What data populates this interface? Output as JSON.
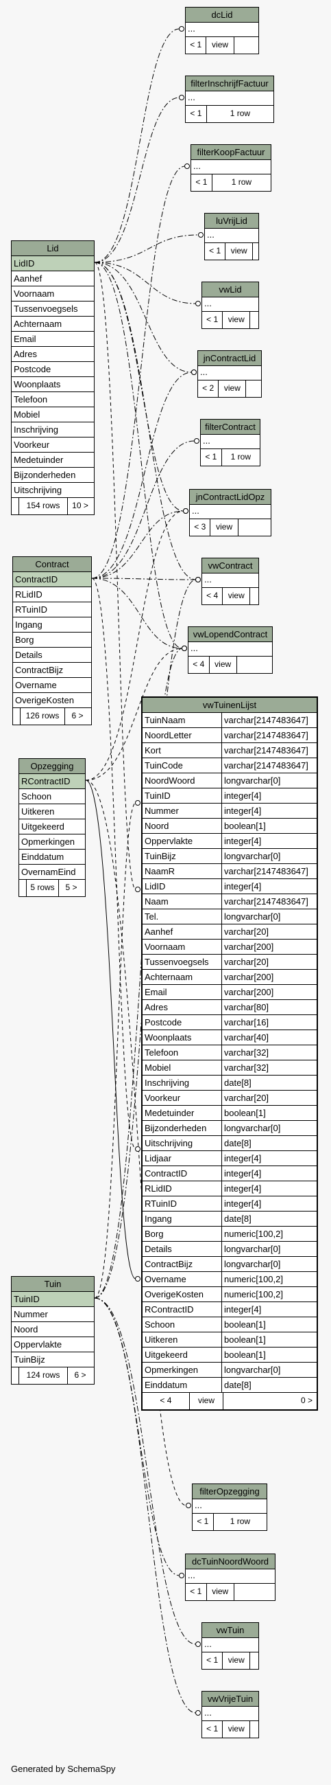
{
  "generated_by": "Generated by SchemaSpy",
  "small_views": [
    {
      "name": "dcLid",
      "cells": [
        "< 1",
        "view",
        ""
      ]
    },
    {
      "name": "filterInschrijfFactuur",
      "cells": [
        "< 1",
        "1 row"
      ]
    },
    {
      "name": "filterKoopFactuur",
      "cells": [
        "< 1",
        "1 row"
      ]
    },
    {
      "name": "luVrijLid",
      "cells": [
        "< 1",
        "view",
        ""
      ]
    },
    {
      "name": "vwLid",
      "cells": [
        "< 1",
        "view",
        ""
      ]
    },
    {
      "name": "jnContractLid",
      "cells": [
        "< 2",
        "view",
        ""
      ]
    },
    {
      "name": "filterContract",
      "cells": [
        "< 1",
        "1 row"
      ]
    },
    {
      "name": "jnContractLidOpz",
      "cells": [
        "< 3",
        "view",
        ""
      ]
    },
    {
      "name": "vwContract",
      "cells": [
        "< 4",
        "view",
        ""
      ]
    },
    {
      "name": "vwLopendContract",
      "cells": [
        "< 4",
        "view",
        ""
      ]
    },
    {
      "name": "filterOpzegging",
      "cells": [
        "< 1",
        "1 row"
      ]
    },
    {
      "name": "dcTuinNoordWoord",
      "cells": [
        "< 1",
        "view",
        ""
      ]
    },
    {
      "name": "vwTuin",
      "cells": [
        "< 1",
        "view",
        ""
      ]
    },
    {
      "name": "vwVrijeTuin",
      "cells": [
        "< 1",
        "view",
        ""
      ]
    }
  ],
  "ellipsis": "...",
  "lid": {
    "name": "Lid",
    "pk": "LidID",
    "columns": [
      "Aanhef",
      "Voornaam",
      "Tussenvoegsels",
      "Achternaam",
      "Email",
      "Adres",
      "Postcode",
      "Woonplaats",
      "Telefoon",
      "Mobiel",
      "Inschrijving",
      "Voorkeur",
      "Medetuinder",
      "Bijzonderheden",
      "Uitschrijving"
    ],
    "rows": "154 rows",
    "children": "10 >"
  },
  "contract": {
    "name": "Contract",
    "pk": "ContractID",
    "columns": [
      "RLidID",
      "RTuinID",
      "Ingang",
      "Borg",
      "Details",
      "ContractBijz",
      "Overname",
      "OverigeKosten"
    ],
    "rows": "126 rows",
    "children": "6 >"
  },
  "opzegging": {
    "name": "Opzegging",
    "pk": "RContractID",
    "columns": [
      "Schoon",
      "Uitkeren",
      "Uitgekeerd",
      "Opmerkingen",
      "Einddatum",
      "OvernamEind"
    ],
    "rows": "5 rows",
    "children": "5 >"
  },
  "tuin": {
    "name": "Tuin",
    "pk": "TuinID",
    "columns": [
      "Nummer",
      "Noord",
      "Oppervlakte",
      "TuinBijz"
    ],
    "rows": "124 rows",
    "children": "6 >"
  },
  "vwTuinenLijst": {
    "name": "vwTuinenLijst",
    "columns": [
      [
        "TuinNaam",
        "varchar[2147483647]"
      ],
      [
        "NoordLetter",
        "varchar[2147483647]"
      ],
      [
        "Kort",
        "varchar[2147483647]"
      ],
      [
        "TuinCode",
        "varchar[2147483647]"
      ],
      [
        "NoordWoord",
        "longvarchar[0]"
      ],
      [
        "TuinID",
        "integer[4]"
      ],
      [
        "Nummer",
        "integer[4]"
      ],
      [
        "Noord",
        "boolean[1]"
      ],
      [
        "Oppervlakte",
        "integer[4]"
      ],
      [
        "TuinBijz",
        "longvarchar[0]"
      ],
      [
        "NaamR",
        "varchar[2147483647]"
      ],
      [
        "LidID",
        "integer[4]"
      ],
      [
        "Naam",
        "varchar[2147483647]"
      ],
      [
        "Tel.",
        "longvarchar[0]"
      ],
      [
        "Aanhef",
        "varchar[20]"
      ],
      [
        "Voornaam",
        "varchar[200]"
      ],
      [
        "Tussenvoegsels",
        "varchar[20]"
      ],
      [
        "Achternaam",
        "varchar[200]"
      ],
      [
        "Email",
        "varchar[200]"
      ],
      [
        "Adres",
        "varchar[80]"
      ],
      [
        "Postcode",
        "varchar[16]"
      ],
      [
        "Woonplaats",
        "varchar[40]"
      ],
      [
        "Telefoon",
        "varchar[32]"
      ],
      [
        "Mobiel",
        "varchar[32]"
      ],
      [
        "Inschrijving",
        "date[8]"
      ],
      [
        "Voorkeur",
        "varchar[20]"
      ],
      [
        "Medetuinder",
        "boolean[1]"
      ],
      [
        "Bijzonderheden",
        "longvarchar[0]"
      ],
      [
        "Uitschrijving",
        "date[8]"
      ],
      [
        "Lidjaar",
        "integer[4]"
      ],
      [
        "ContractID",
        "integer[4]"
      ],
      [
        "RLidID",
        "integer[4]"
      ],
      [
        "RTuinID",
        "integer[4]"
      ],
      [
        "Ingang",
        "date[8]"
      ],
      [
        "Borg",
        "numeric[100,2]"
      ],
      [
        "Details",
        "longvarchar[0]"
      ],
      [
        "ContractBijz",
        "longvarchar[0]"
      ],
      [
        "Overname",
        "numeric[100,2]"
      ],
      [
        "OverigeKosten",
        "numeric[100,2]"
      ],
      [
        "RContractID",
        "integer[4]"
      ],
      [
        "Schoon",
        "boolean[1]"
      ],
      [
        "Uitkeren",
        "boolean[1]"
      ],
      [
        "Uitgekeerd",
        "boolean[1]"
      ],
      [
        "Opmerkingen",
        "longvarchar[0]"
      ],
      [
        "Einddatum",
        "date[8]"
      ]
    ],
    "footer": [
      "< 4",
      "view",
      "0 >"
    ]
  }
}
